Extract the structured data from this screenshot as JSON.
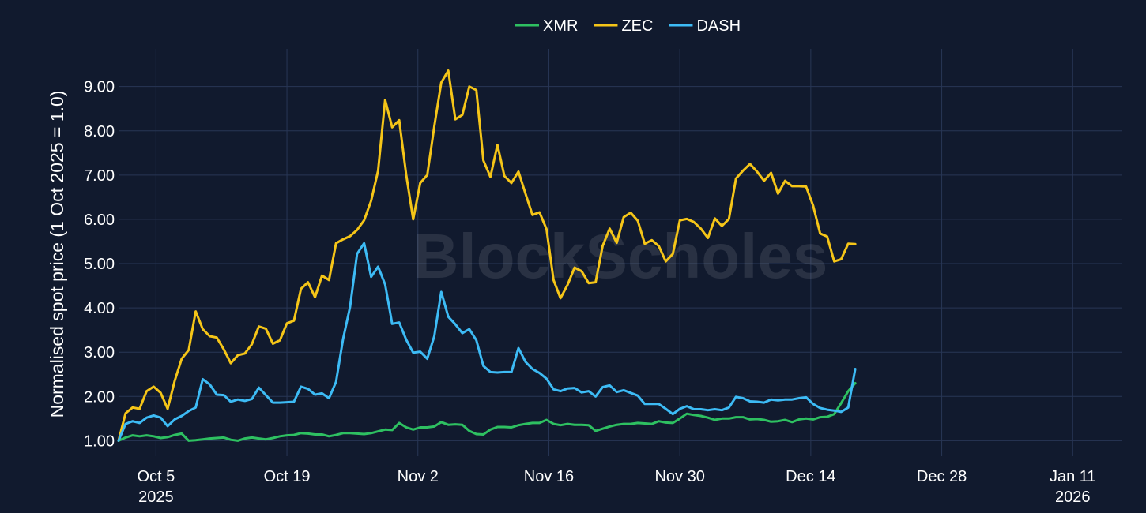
{
  "chart_data": {
    "type": "line",
    "watermark": "BlockScholes",
    "xlabel": "",
    "ylabel": "Normalised spot price (1 Oct 2025 = 1.0)",
    "ylim": [
      0.65,
      9.85
    ],
    "y_ticks": [
      1,
      2,
      3,
      4,
      5,
      6,
      7,
      8,
      9
    ],
    "y_tick_labels": [
      "1.00",
      "2.00",
      "3.00",
      "4.00",
      "5.00",
      "6.00",
      "7.00",
      "8.00",
      "9.00"
    ],
    "x_start": "2025-10-01",
    "x_step_days": 0.75,
    "xlim_days": [
      0,
      107.3
    ],
    "x_ticks": [
      {
        "day": 4,
        "label": "Oct 5",
        "year": "2025"
      },
      {
        "day": 18,
        "label": "Oct 19",
        "year": ""
      },
      {
        "day": 32,
        "label": "Nov 2",
        "year": ""
      },
      {
        "day": 46,
        "label": "Nov 16",
        "year": ""
      },
      {
        "day": 60,
        "label": "Nov 30",
        "year": ""
      },
      {
        "day": 74,
        "label": "Dec 14",
        "year": ""
      },
      {
        "day": 88,
        "label": "Dec 28",
        "year": ""
      },
      {
        "day": 102,
        "label": "Jan 11",
        "year": "2026"
      }
    ],
    "colors": {
      "background": "#111a2e",
      "grid": "#283655",
      "XMR": "#2ec061",
      "ZEC": "#f5c518",
      "DASH": "#3dbbf5"
    },
    "series": [
      {
        "name": "XMR",
        "color": "#2ec061",
        "values": [
          1.0,
          1.07,
          1.12,
          1.1,
          1.12,
          1.1,
          1.06,
          1.08,
          1.13,
          1.16,
          1.0,
          1.01,
          1.03,
          1.05,
          1.06,
          1.07,
          1.02,
          1.0,
          1.05,
          1.07,
          1.05,
          1.03,
          1.06,
          1.1,
          1.12,
          1.13,
          1.17,
          1.16,
          1.14,
          1.14,
          1.1,
          1.13,
          1.17,
          1.17,
          1.16,
          1.15,
          1.17,
          1.21,
          1.25,
          1.24,
          1.4,
          1.3,
          1.25,
          1.3,
          1.3,
          1.32,
          1.42,
          1.36,
          1.37,
          1.36,
          1.22,
          1.15,
          1.14,
          1.25,
          1.31,
          1.31,
          1.3,
          1.35,
          1.38,
          1.4,
          1.4,
          1.47,
          1.38,
          1.35,
          1.38,
          1.36,
          1.36,
          1.35,
          1.22,
          1.27,
          1.32,
          1.36,
          1.38,
          1.38,
          1.4,
          1.39,
          1.38,
          1.44,
          1.41,
          1.4,
          1.5,
          1.61,
          1.58,
          1.56,
          1.52,
          1.47,
          1.5,
          1.5,
          1.53,
          1.53,
          1.48,
          1.49,
          1.47,
          1.43,
          1.44,
          1.47,
          1.42,
          1.48,
          1.5,
          1.48,
          1.53,
          1.54,
          1.6,
          1.85,
          2.12,
          2.3
        ]
      },
      {
        "name": "ZEC",
        "color": "#f5c518",
        "values": [
          1.0,
          1.62,
          1.75,
          1.72,
          2.12,
          2.22,
          2.08,
          1.72,
          2.35,
          2.85,
          3.05,
          3.92,
          3.52,
          3.36,
          3.33,
          3.06,
          2.75,
          2.93,
          2.97,
          3.18,
          3.58,
          3.53,
          3.19,
          3.27,
          3.65,
          3.71,
          4.43,
          4.58,
          4.24,
          4.73,
          4.63,
          5.46,
          5.55,
          5.62,
          5.76,
          5.98,
          6.42,
          7.1,
          8.7,
          8.08,
          8.24,
          7.0,
          6.0,
          6.82,
          7.0,
          8.1,
          9.09,
          9.36,
          8.26,
          8.36,
          9.0,
          8.92,
          7.33,
          6.96,
          7.68,
          6.98,
          6.82,
          7.08,
          6.58,
          6.1,
          6.16,
          5.78,
          4.63,
          4.22,
          4.52,
          4.91,
          4.83,
          4.56,
          4.58,
          5.4,
          5.79,
          5.47,
          6.05,
          6.15,
          5.97,
          5.45,
          5.53,
          5.4,
          5.05,
          5.22,
          5.98,
          6.01,
          5.94,
          5.79,
          5.58,
          6.02,
          5.85,
          6.01,
          6.92,
          7.1,
          7.25,
          7.08,
          6.87,
          7.05,
          6.58,
          6.87,
          6.75,
          6.75,
          6.74,
          6.31,
          5.68,
          5.61,
          5.05,
          5.1,
          5.45,
          5.44
        ]
      },
      {
        "name": "DASH",
        "color": "#3dbbf5",
        "values": [
          1.0,
          1.38,
          1.44,
          1.4,
          1.52,
          1.57,
          1.52,
          1.33,
          1.48,
          1.56,
          1.67,
          1.75,
          2.39,
          2.27,
          2.04,
          2.03,
          1.88,
          1.93,
          1.9,
          1.94,
          2.2,
          2.03,
          1.86,
          1.86,
          1.87,
          1.88,
          2.22,
          2.17,
          2.04,
          2.07,
          1.96,
          2.33,
          3.3,
          4.02,
          5.22,
          5.46,
          4.7,
          4.93,
          4.53,
          3.64,
          3.67,
          3.28,
          2.99,
          3.01,
          2.85,
          3.36,
          4.36,
          3.8,
          3.63,
          3.43,
          3.52,
          3.27,
          2.69,
          2.55,
          2.54,
          2.55,
          2.55,
          3.09,
          2.78,
          2.62,
          2.53,
          2.4,
          2.16,
          2.12,
          2.18,
          2.19,
          2.09,
          2.12,
          2.0,
          2.21,
          2.25,
          2.1,
          2.14,
          2.08,
          2.02,
          1.83,
          1.83,
          1.83,
          1.72,
          1.6,
          1.72,
          1.78,
          1.71,
          1.71,
          1.69,
          1.71,
          1.69,
          1.75,
          1.99,
          1.96,
          1.89,
          1.88,
          1.86,
          1.93,
          1.91,
          1.93,
          1.93,
          1.96,
          1.98,
          1.83,
          1.74,
          1.7,
          1.68,
          1.65,
          1.75,
          2.62
        ]
      }
    ]
  }
}
